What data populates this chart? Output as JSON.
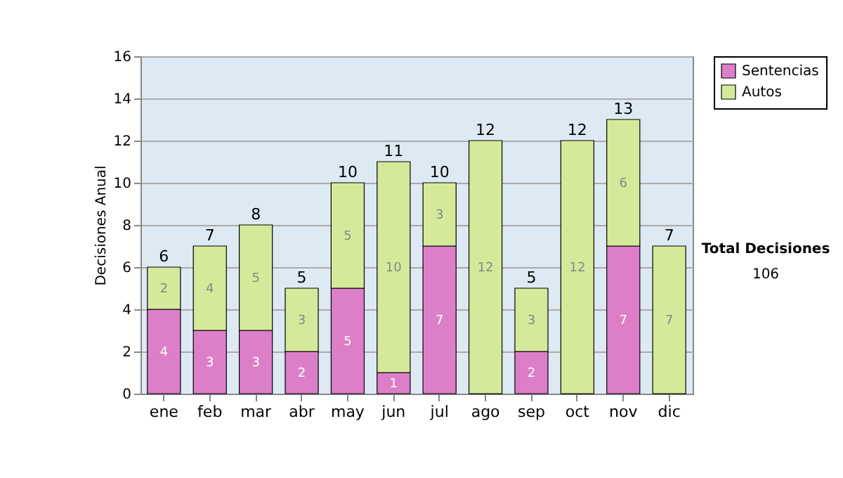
{
  "chart_data": {
    "type": "bar",
    "stacked": true,
    "ylabel": "Decisiones Anual",
    "categories": [
      "ene",
      "feb",
      "mar",
      "abr",
      "may",
      "jun",
      "jul",
      "ago",
      "sep",
      "oct",
      "nov",
      "dic"
    ],
    "series": [
      {
        "name": "Sentencias",
        "color": "#dd7fc8",
        "values": [
          4,
          3,
          3,
          2,
          5,
          1,
          7,
          0,
          2,
          0,
          7,
          0
        ],
        "value_labels": [
          "4",
          "3",
          "3",
          "2",
          "5",
          "1",
          "7",
          null,
          "2",
          null,
          "7",
          null
        ]
      },
      {
        "name": "Autos",
        "color": "#d4ea9a",
        "values": [
          2,
          4,
          5,
          3,
          5,
          10,
          3,
          12,
          3,
          12,
          6,
          7
        ],
        "value_labels": [
          "2",
          "4",
          "5",
          "3",
          "5",
          "10",
          "3",
          "12",
          "3",
          "12",
          "6",
          "7"
        ]
      }
    ],
    "totals": [
      "6",
      "7",
      "8",
      "5",
      "10",
      "11",
      "10",
      "12",
      "5",
      "12",
      "13",
      "7"
    ],
    "ylim": [
      0,
      16
    ],
    "yticks": [
      0,
      2,
      4,
      6,
      8,
      10,
      12,
      14,
      16
    ],
    "grid": "y",
    "legend": "right",
    "annotations": [
      "Total Decisiones",
      "106"
    ]
  }
}
